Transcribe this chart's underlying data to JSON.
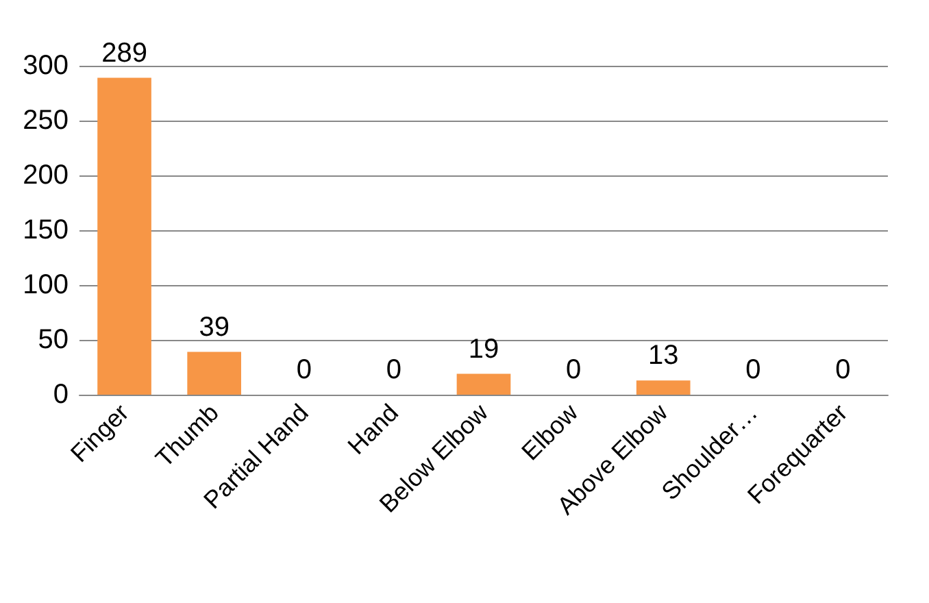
{
  "chart_data": {
    "type": "bar",
    "categories": [
      "Finger",
      "Thumb",
      "Partial Hand",
      "Hand",
      "Below Elbow",
      "Elbow",
      "Above Elbow",
      "Shoulder…",
      "Forequarter"
    ],
    "values": [
      289,
      39,
      0,
      0,
      19,
      0,
      13,
      0,
      0
    ],
    "color": "#f79646",
    "ylim": [
      0,
      300
    ],
    "yticks": [
      0,
      50,
      100,
      150,
      200,
      250,
      300
    ],
    "grid": "y",
    "data_labels": true
  }
}
